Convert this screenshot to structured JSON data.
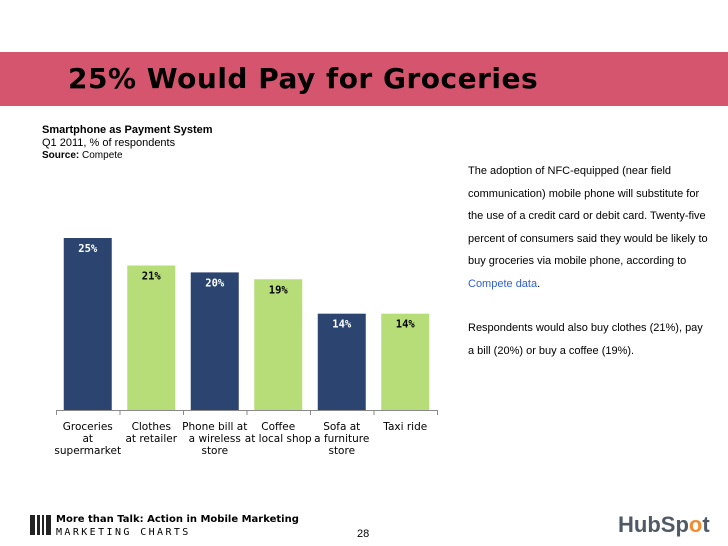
{
  "slide": {
    "title": "25% Would Pay for Groceries",
    "subtitle": "Smartphone as Payment System",
    "period": "Q1 2011, % of respondents",
    "source_label": "Source:",
    "source": "Compete",
    "description_p1_pre": "The adoption of NFC-equipped (near field communication) mobile phone will substitute for the use of a credit card or debit card. Twenty-five percent of consumers said they would be likely to buy groceries via mobile phone, according to ",
    "description_link": "Compete data",
    "description_p1_post": ".",
    "description_p2": "Respondents would also buy clothes (21%), pay a bill (20%) or buy a coffee (19%).",
    "footer_text": "More than Talk: Action in Mobile Marketing",
    "footer_brand": "MARKETING CHARTS",
    "page_number": "28",
    "hubspot_pre": "HubSp",
    "hubspot_o": "o",
    "hubspot_post": "t"
  },
  "colors": {
    "title_band": "#d5546e",
    "bar_dark": "#2b4470",
    "bar_light": "#b7dd79",
    "link": "#2f5fd0",
    "hubspot_text": "#4f5a66",
    "hubspot_accent": "#f38b2f"
  },
  "chart_data": {
    "type": "bar",
    "categories": [
      [
        "Groceries",
        "at",
        "supermarket"
      ],
      [
        "Clothes",
        "at retailer"
      ],
      [
        "Phone bill at",
        "a wireless",
        "store"
      ],
      [
        "Coffee",
        "at local shop"
      ],
      [
        "Sofa at",
        "a furniture",
        "store"
      ],
      [
        "Taxi ride"
      ]
    ],
    "values": [
      25,
      21,
      20,
      19,
      14,
      14
    ],
    "value_labels": [
      "25%",
      "21%",
      "20%",
      "19%",
      "14%",
      "14%"
    ],
    "bar_colors": [
      "#2b4470",
      "#b7dd79",
      "#2b4470",
      "#b7dd79",
      "#2b4470",
      "#b7dd79"
    ],
    "ylim": [
      0,
      25
    ],
    "grid": false,
    "legend": "none"
  }
}
